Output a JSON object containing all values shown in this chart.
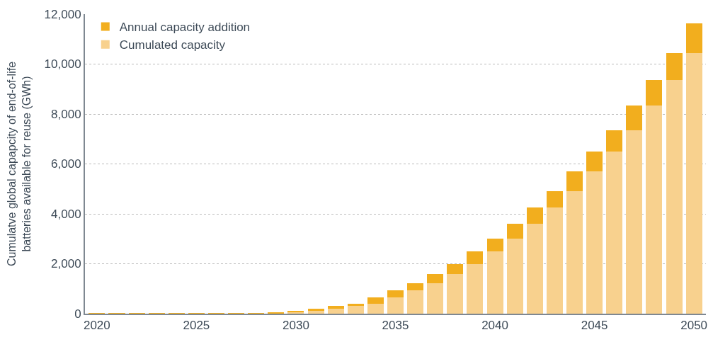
{
  "chart_data": {
    "type": "bar",
    "stacked": true,
    "ylabel": "Cumulatve global capapcity of end-of-life batteries available for reuse (GWh)",
    "x": [
      2020,
      2021,
      2022,
      2023,
      2024,
      2025,
      2026,
      2027,
      2028,
      2029,
      2030,
      2031,
      2032,
      2033,
      2034,
      2035,
      2036,
      2037,
      2038,
      2039,
      2040,
      2041,
      2042,
      2043,
      2044,
      2045,
      2046,
      2047,
      2048,
      2049,
      2050
    ],
    "series": [
      {
        "name": "Cumulated capacity",
        "color": "#f8d18e",
        "values": [
          0,
          0,
          0,
          0,
          0,
          0,
          0,
          0,
          0,
          null,
          60,
          110,
          190,
          300,
          400,
          640,
          930,
          1230,
          1590,
          2000,
          2500,
          3000,
          3600,
          4250,
          4920,
          5690,
          6490,
          7360,
          8330,
          9370,
          10440
        ]
      },
      {
        "name": "Annual capacity addition",
        "color": "#f2ae1e",
        "values": [
          10,
          10,
          10,
          10,
          10,
          10,
          10,
          10,
          10,
          40,
          50,
          80,
          110,
          100,
          240,
          290,
          300,
          360,
          410,
          500,
          500,
          600,
          650,
          670,
          770,
          800,
          870,
          970,
          1040,
          1070,
          1180
        ]
      }
    ],
    "xlim": [
      2019.4,
      2050.6
    ],
    "xticks": [
      2020,
      2025,
      2030,
      2035,
      2040,
      2045,
      2050
    ],
    "ylim": [
      0,
      12000
    ],
    "yticks": [
      {
        "value": 0,
        "label": "0"
      },
      {
        "value": 2000,
        "label": "2,000"
      },
      {
        "value": 4000,
        "label": "4,000"
      },
      {
        "value": 6000,
        "label": "6,000"
      },
      {
        "value": 8000,
        "label": "8,000"
      },
      {
        "value": 10000,
        "label": "10,000"
      },
      {
        "value": 12000,
        "label": "12,000"
      }
    ],
    "grid": "y",
    "legend": "top left"
  }
}
